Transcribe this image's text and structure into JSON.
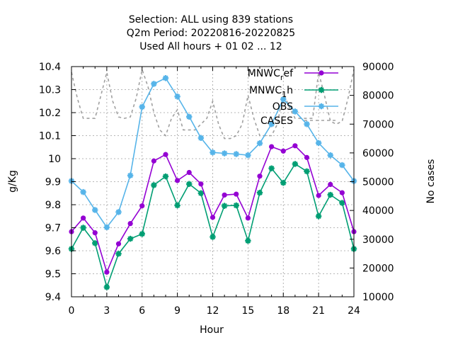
{
  "chart_data": {
    "type": "line",
    "title_lines": [
      "Selection: ALL using   839 stations",
      "Q2m   Period: 20220816-20220825",
      "Used  All hours  + 01 02 ... 12"
    ],
    "xlabel": "Hour",
    "ylabel": "g/Kg",
    "y2label": "No cases",
    "xlim": [
      0,
      24
    ],
    "ylim": [
      9.4,
      10.4
    ],
    "y2lim": [
      10000,
      90000
    ],
    "x_ticks": [
      0,
      3,
      6,
      9,
      12,
      15,
      18,
      21,
      24
    ],
    "y_ticks": [
      "9.4",
      "9.5",
      "9.6",
      "9.7",
      "9.8",
      "9.9",
      "10",
      "10.1",
      "10.2",
      "10.3",
      "10.4"
    ],
    "y2_ticks": [
      10000,
      20000,
      30000,
      40000,
      50000,
      60000,
      70000,
      80000,
      90000
    ],
    "grid": true,
    "legend_position": "top-right",
    "x": [
      0,
      1,
      2,
      3,
      4,
      5,
      6,
      7,
      8,
      9,
      10,
      11,
      12,
      13,
      14,
      15,
      16,
      17,
      18,
      19,
      20,
      21,
      22,
      23,
      24
    ],
    "series": [
      {
        "name": "MNWC",
        "name_sub": "r",
        "name_suffix": "ef",
        "color": "#9400d3",
        "marker": "circle",
        "values": [
          9.683,
          9.742,
          9.678,
          9.507,
          9.63,
          9.718,
          9.795,
          9.99,
          10.018,
          9.905,
          9.94,
          9.89,
          9.745,
          9.842,
          9.846,
          9.742,
          9.924,
          10.052,
          10.033,
          10.056,
          10.005,
          9.84,
          9.888,
          9.852,
          9.683
        ]
      },
      {
        "name": "MNWC",
        "name_sub": "1",
        "name_suffix": "h",
        "color": "#009e73",
        "marker": "star",
        "values": [
          9.608,
          9.7,
          9.633,
          9.442,
          9.587,
          9.652,
          9.673,
          9.885,
          9.923,
          9.797,
          9.89,
          9.85,
          9.66,
          9.795,
          9.797,
          9.643,
          9.852,
          9.958,
          9.895,
          9.977,
          9.945,
          9.75,
          9.843,
          9.808,
          9.608
        ]
      },
      {
        "name": "OBS",
        "color": "#56b4e9",
        "marker": "star",
        "values": [
          9.903,
          9.855,
          9.777,
          9.702,
          9.768,
          9.927,
          10.225,
          10.325,
          10.35,
          10.27,
          10.182,
          10.09,
          10.027,
          10.023,
          10.02,
          10.015,
          10.067,
          10.15,
          10.258,
          10.205,
          10.15,
          10.068,
          10.015,
          9.972,
          9.903
        ]
      },
      {
        "name": "CASES",
        "color": "#a0a0a0",
        "dashed": true,
        "axis": "y2",
        "x": [
          0,
          0.5,
          1,
          1.5,
          2,
          2.5,
          3,
          3.5,
          4,
          4.5,
          5,
          5.5,
          6,
          6.5,
          7,
          7.5,
          8,
          8.5,
          9,
          9.5,
          10,
          10.5,
          11,
          11.5,
          12,
          12.5,
          13,
          13.5,
          14,
          14.5,
          15,
          15.5,
          16,
          16.5,
          17,
          17.5,
          18,
          18.5,
          19,
          19.5,
          20,
          20.5,
          21,
          21.5,
          22,
          22.5,
          23,
          23.5,
          24
        ],
        "values": [
          88000,
          79000,
          72000,
          72000,
          72000,
          80000,
          88000,
          78000,
          72500,
          72000,
          72500,
          79000,
          89000,
          83000,
          74000,
          68000,
          66000,
          72000,
          75000,
          68000,
          68000,
          68000,
          70000,
          72000,
          78000,
          70000,
          65000,
          65000,
          66000,
          70000,
          80000,
          72000,
          66000,
          66000,
          66000,
          70000,
          81000,
          76000,
          72000,
          72000,
          72000,
          72000,
          88000,
          80000,
          71000,
          70000,
          71000,
          79000,
          89000
        ]
      }
    ]
  }
}
